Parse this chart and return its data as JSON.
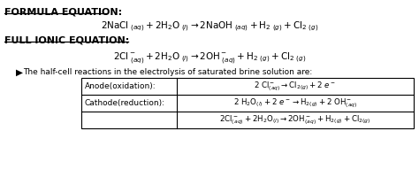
{
  "bg_color": "#ffffff",
  "title_formula": "FORMULA EQUATION:",
  "title_ionic": "FULL IONIC EQUATION:",
  "bullet_text": "The half-cell reactions in the electrolysis of saturated brine solution are:",
  "table_col1": [
    "Anode(oxidation):",
    "Cathode(reduction):",
    ""
  ],
  "text_color": "#000000",
  "figsize": [
    4.74,
    2.09
  ],
  "dpi": 100,
  "fs_title": 8.0,
  "fs_main": 7.5,
  "fs_small": 6.5,
  "fs_table": 6.5
}
